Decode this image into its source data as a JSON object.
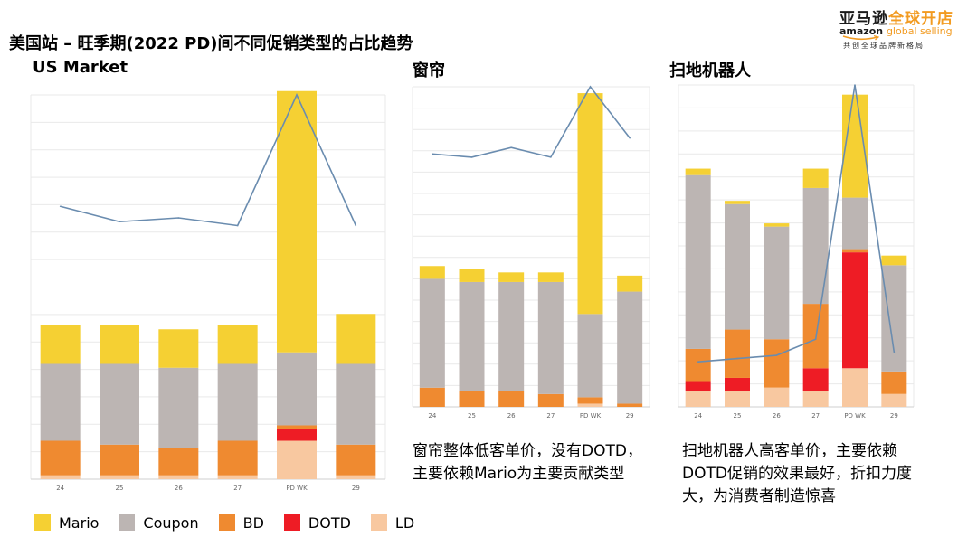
{
  "page": {
    "title": "美国站 – 旺季期(2022 PD)间不同促销类型的占比趋势"
  },
  "logo": {
    "cn_part1": "亚马逊",
    "cn_part2": "全球开店",
    "en_part1": "amazon",
    "en_part2": "global selling",
    "tagline": "共创全球品牌新格局"
  },
  "colors": {
    "Mario": "#f5d033",
    "Coupon": "#bcb5b3",
    "BD": "#ef8a30",
    "DOTD": "#ee1c25",
    "LD": "#f8c8a0",
    "line": "#6a8caf",
    "grid": "#e9e9e9"
  },
  "legend": {
    "items": [
      {
        "label": "Mario",
        "color": "#f5d033"
      },
      {
        "label": "Coupon",
        "color": "#bcb5b3"
      },
      {
        "label": "BD",
        "color": "#ef8a30"
      },
      {
        "label": "DOTD",
        "color": "#ee1c25"
      },
      {
        "label": "LD",
        "color": "#f8c8a0"
      }
    ]
  },
  "notes": {
    "curtain": "窗帘整体低客单价，没有DOTD，主要依赖Mario为主要贡献类型",
    "robot": "扫地机器人高客单价，主要依赖DOTD促销的效果最好，折扣力度大，为消费者制造惊喜"
  },
  "chart_data": [
    {
      "type": "bar",
      "stacked": true,
      "title": "US Market",
      "categories": [
        "24",
        "25",
        "26",
        "27",
        "PD WK",
        "29"
      ],
      "ylim": [
        0,
        100
      ],
      "series": [
        {
          "name": "LD",
          "values": [
            1,
            1,
            1,
            1,
            10,
            1
          ]
        },
        {
          "name": "DOTD",
          "values": [
            0,
            0,
            0,
            0,
            3,
            0
          ]
        },
        {
          "name": "BD",
          "values": [
            9,
            8,
            7,
            9,
            1,
            8
          ]
        },
        {
          "name": "Coupon",
          "values": [
            20,
            21,
            21,
            20,
            19,
            21
          ]
        },
        {
          "name": "Mario",
          "values": [
            10,
            10,
            10,
            10,
            68,
            13
          ]
        }
      ],
      "line": {
        "name": "trend",
        "values": [
          71,
          67,
          68,
          66,
          100,
          66
        ]
      }
    },
    {
      "type": "bar",
      "stacked": true,
      "title": "窗帘",
      "categories": [
        "24",
        "25",
        "26",
        "27",
        "PD WK",
        "29"
      ],
      "ylim": [
        0,
        100
      ],
      "series": [
        {
          "name": "LD",
          "values": [
            0,
            0,
            0,
            0,
            1,
            0
          ]
        },
        {
          "name": "DOTD",
          "values": [
            0,
            0,
            0,
            0,
            0,
            0
          ]
        },
        {
          "name": "BD",
          "values": [
            6,
            5,
            5,
            4,
            2,
            1
          ]
        },
        {
          "name": "Coupon",
          "values": [
            34,
            34,
            34,
            35,
            26,
            35
          ]
        },
        {
          "name": "Mario",
          "values": [
            4,
            4,
            3,
            3,
            69,
            5
          ]
        }
      ],
      "line": {
        "name": "trend",
        "values": [
          79,
          78,
          81,
          78,
          100,
          84
        ]
      }
    },
    {
      "type": "bar",
      "stacked": true,
      "title": "扫地机器人",
      "categories": [
        "24",
        "25",
        "26",
        "27",
        "PD WK",
        "29"
      ],
      "ylim": [
        0,
        100
      ],
      "series": [
        {
          "name": "LD",
          "values": [
            5,
            5,
            6,
            5,
            12,
            4
          ]
        },
        {
          "name": "DOTD",
          "values": [
            3,
            4,
            0,
            7,
            36,
            0
          ]
        },
        {
          "name": "BD",
          "values": [
            10,
            15,
            15,
            20,
            1,
            7
          ]
        },
        {
          "name": "Coupon",
          "values": [
            54,
            39,
            35,
            36,
            16,
            33
          ]
        },
        {
          "name": "Mario",
          "values": [
            2,
            1,
            1,
            6,
            32,
            3
          ]
        }
      ],
      "line": {
        "name": "trend",
        "values": [
          14,
          15,
          16,
          21,
          100,
          17
        ]
      }
    }
  ]
}
